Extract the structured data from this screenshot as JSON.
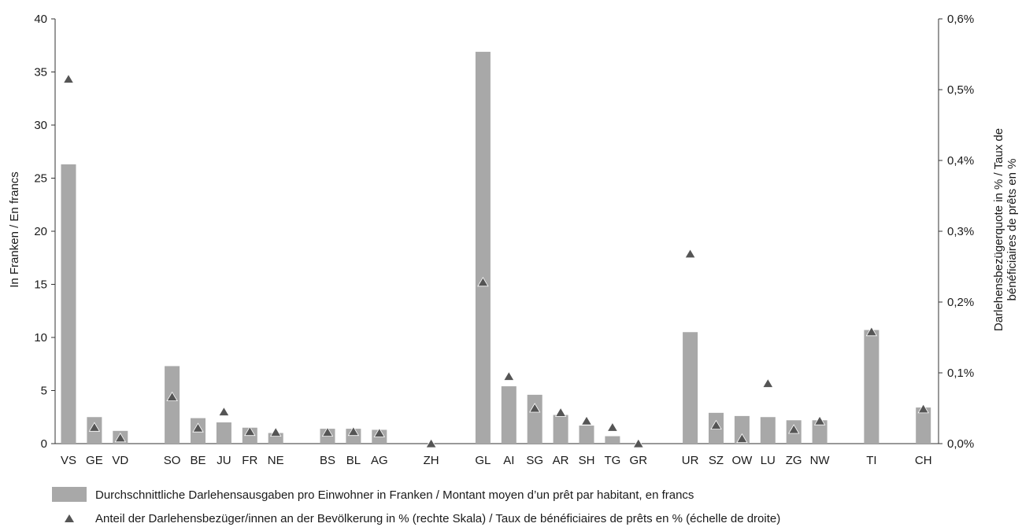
{
  "chart_data": {
    "type": "bar",
    "categories": [
      "VS",
      "GE",
      "VD",
      "SO",
      "BE",
      "JU",
      "FR",
      "NE",
      "BS",
      "BL",
      "AG",
      "ZH",
      "GL",
      "AI",
      "SG",
      "AR",
      "SH",
      "TG",
      "GR",
      "UR",
      "SZ",
      "OW",
      "LU",
      "ZG",
      "NW",
      "TI",
      "CH"
    ],
    "slot_index": [
      0,
      1,
      2,
      4,
      5,
      6,
      7,
      8,
      10,
      11,
      12,
      14,
      16,
      17,
      18,
      19,
      20,
      21,
      22,
      24,
      25,
      26,
      27,
      28,
      29,
      31,
      33
    ],
    "series": [
      {
        "name": "Durchschnittliche Darlehensausgaben pro Einwohner in Franken / Montant moyen d’un prêt par habitant, en francs",
        "type": "bar",
        "axis": "left",
        "values": [
          26.3,
          2.5,
          1.2,
          7.3,
          2.4,
          2.0,
          1.5,
          1.0,
          1.4,
          1.4,
          1.3,
          0.0,
          36.9,
          5.4,
          4.6,
          2.7,
          1.7,
          0.7,
          0.0,
          10.5,
          2.9,
          2.6,
          2.5,
          2.2,
          2.2,
          10.7,
          3.4
        ]
      },
      {
        "name": "Anteil der Darlehensbezüger/innen an der Bevölkerung in % (rechte Skala) / Taux de bénéficiaires de prêts en % (échelle de droite)",
        "type": "scatter",
        "marker": "triangle",
        "axis": "right",
        "values": [
          0.515,
          0.023,
          0.008,
          0.066,
          0.022,
          0.045,
          0.017,
          0.016,
          0.016,
          0.017,
          0.015,
          0.0,
          0.228,
          0.095,
          0.05,
          0.044,
          0.032,
          0.023,
          0.0,
          0.268,
          0.026,
          0.007,
          0.085,
          0.02,
          0.032,
          0.158,
          0.049
        ]
      }
    ],
    "ylabel": "In Franken / En francs",
    "y2label_lines": [
      "Darlehensbezügerquote in % / Taux de",
      "bénéficiaires de prêts en %"
    ],
    "ylim": [
      0,
      40
    ],
    "yticks": [
      "0",
      "5",
      "10",
      "15",
      "20",
      "25",
      "30",
      "35",
      "40"
    ],
    "y2lim": [
      0,
      0.6
    ],
    "y2ticks": [
      "0,0%",
      "0,1%",
      "0,2%",
      "0,3%",
      "0,4%",
      "0,5%",
      "0,6%"
    ],
    "grid": false,
    "legend_position": "bottom",
    "colors": {
      "bar": "#a8a8a8",
      "marker": "#555555",
      "axis": "#333333"
    }
  }
}
